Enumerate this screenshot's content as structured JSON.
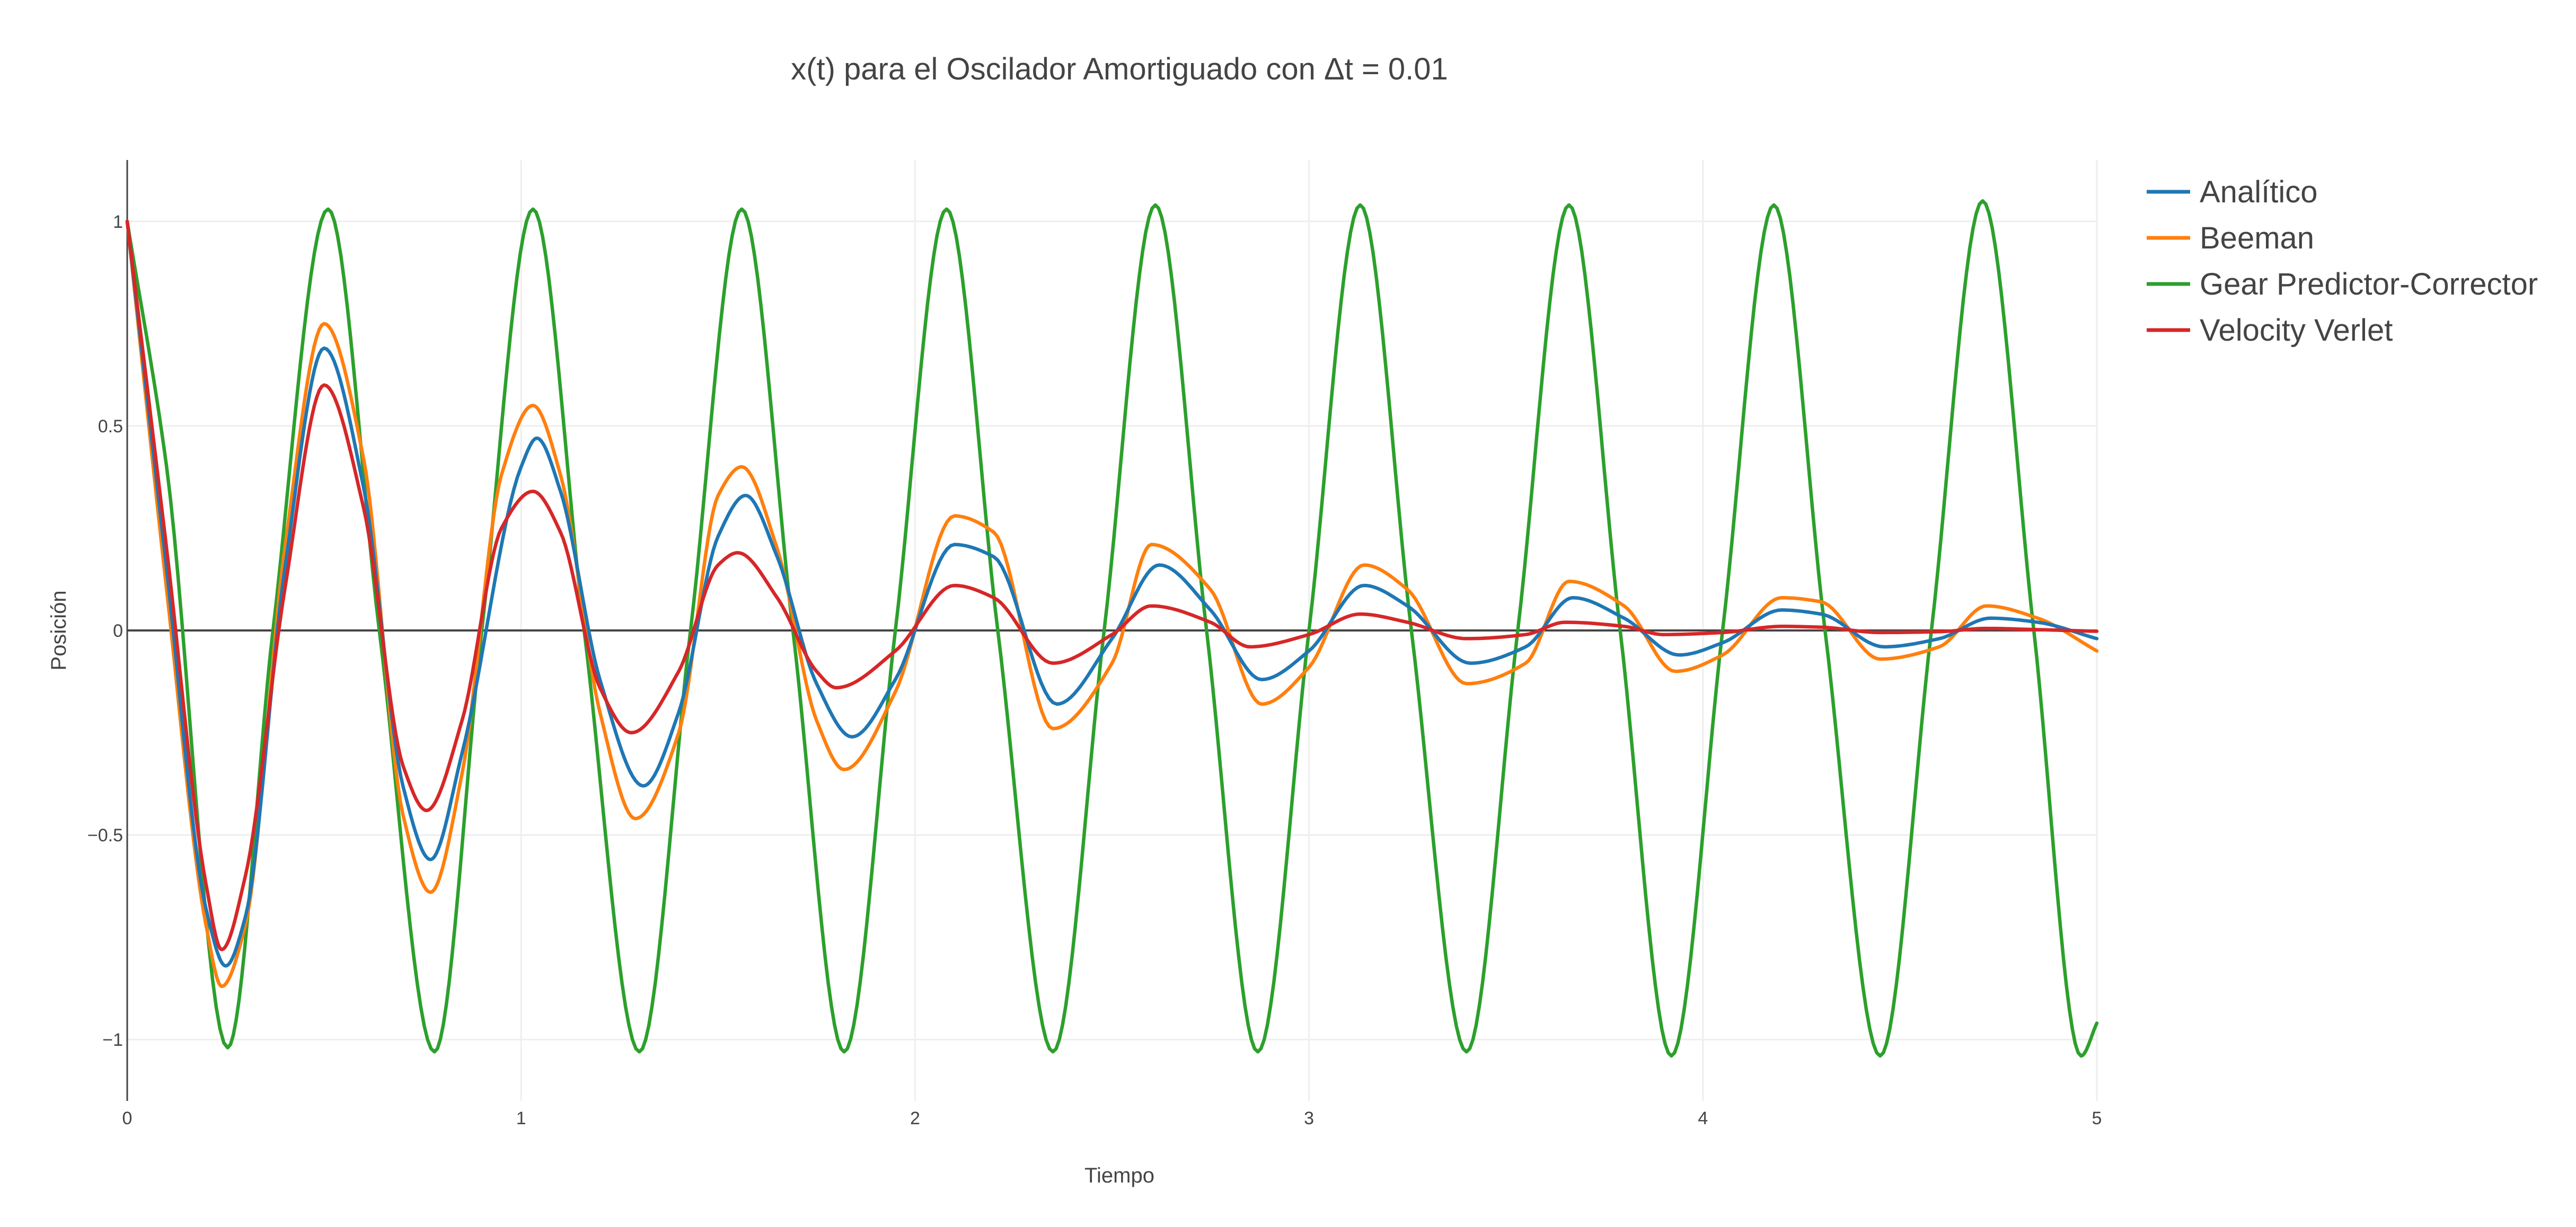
{
  "chart_data": {
    "type": "line",
    "title": "x(t) para el Oscilador Amortiguado con Δt = 0.01",
    "xlabel": "Tiempo",
    "ylabel": "Posición",
    "xlim": [
      0,
      5
    ],
    "ylim": [
      -1.15,
      1.15
    ],
    "xticks": [
      0,
      1,
      2,
      3,
      4,
      5
    ],
    "xtick_labels": [
      "0",
      "1",
      "2",
      "3",
      "4",
      "5"
    ],
    "yticks": [
      1,
      0.5,
      0,
      -0.5,
      -1
    ],
    "ytick_labels": [
      "1",
      "0.5",
      "0",
      "−0.5",
      "−1"
    ],
    "grid": true,
    "legend_position": "top-right",
    "series": [
      {
        "name": "Analítico",
        "color": "#1f77b4",
        "x": [
          0,
          0.1,
          0.2,
          0.25,
          0.3,
          0.4,
          0.5,
          0.6,
          0.7,
          0.77,
          0.85,
          1.0,
          1.04,
          1.1,
          1.2,
          1.31,
          1.4,
          1.5,
          1.57,
          1.65,
          1.75,
          1.84,
          1.95,
          2.1,
          2.2,
          2.36,
          2.5,
          2.62,
          2.75,
          2.88,
          3.0,
          3.14,
          3.25,
          3.41,
          3.55,
          3.67,
          3.8,
          3.94,
          4.05,
          4.2,
          4.3,
          4.46,
          4.6,
          4.73,
          4.85,
          5.0
        ],
        "y": [
          1.0,
          0.15,
          -0.68,
          -0.82,
          -0.7,
          0.15,
          0.69,
          0.35,
          -0.38,
          -0.56,
          -0.3,
          0.4,
          0.47,
          0.34,
          -0.12,
          -0.38,
          -0.2,
          0.23,
          0.33,
          0.18,
          -0.13,
          -0.26,
          -0.12,
          0.21,
          0.18,
          -0.18,
          -0.02,
          0.16,
          0.05,
          -0.12,
          -0.05,
          0.11,
          0.06,
          -0.08,
          -0.04,
          0.08,
          0.03,
          -0.06,
          -0.03,
          0.05,
          0.04,
          -0.04,
          -0.02,
          0.03,
          0.02,
          -0.02
        ]
      },
      {
        "name": "Beeman",
        "color": "#ff7f0e",
        "x": [
          0,
          0.1,
          0.2,
          0.24,
          0.3,
          0.4,
          0.5,
          0.6,
          0.7,
          0.77,
          0.85,
          0.95,
          1.03,
          1.1,
          1.2,
          1.29,
          1.4,
          1.5,
          1.56,
          1.65,
          1.75,
          1.82,
          1.95,
          2.1,
          2.2,
          2.35,
          2.5,
          2.6,
          2.75,
          2.88,
          3.0,
          3.14,
          3.25,
          3.4,
          3.55,
          3.66,
          3.8,
          3.93,
          4.05,
          4.2,
          4.3,
          4.45,
          4.6,
          4.72,
          4.85,
          5.0
        ],
        "y": [
          1.0,
          0.1,
          -0.72,
          -0.87,
          -0.72,
          0.2,
          0.75,
          0.42,
          -0.45,
          -0.64,
          -0.35,
          0.38,
          0.55,
          0.38,
          -0.2,
          -0.46,
          -0.25,
          0.33,
          0.4,
          0.2,
          -0.22,
          -0.34,
          -0.15,
          0.28,
          0.24,
          -0.24,
          -0.08,
          0.21,
          0.1,
          -0.18,
          -0.09,
          0.16,
          0.1,
          -0.13,
          -0.08,
          0.12,
          0.06,
          -0.1,
          -0.06,
          0.08,
          0.07,
          -0.07,
          -0.04,
          0.06,
          0.03,
          -0.05
        ]
      },
      {
        "name": "Gear Predictor-Corrector",
        "color": "#2ca02c",
        "x": [
          0,
          0.1,
          0.255,
          0.37,
          0.51,
          0.64,
          0.78,
          0.9,
          1.03,
          1.16,
          1.3,
          1.43,
          1.56,
          1.69,
          1.82,
          1.95,
          2.08,
          2.21,
          2.35,
          2.48,
          2.61,
          2.74,
          2.87,
          3.0,
          3.13,
          3.26,
          3.4,
          3.53,
          3.66,
          3.79,
          3.92,
          4.05,
          4.18,
          4.31,
          4.45,
          4.58,
          4.71,
          4.84,
          4.96,
          5.0
        ],
        "y": [
          1.0,
          0.4,
          -1.02,
          0.0,
          1.03,
          0.0,
          -1.03,
          0.0,
          1.03,
          0.0,
          -1.03,
          0.0,
          1.03,
          0.0,
          -1.03,
          0.0,
          1.03,
          0.0,
          -1.03,
          0.0,
          1.04,
          0.0,
          -1.03,
          0.0,
          1.04,
          0.0,
          -1.03,
          0.0,
          1.04,
          0.0,
          -1.04,
          0.0,
          1.04,
          0.0,
          -1.04,
          0.0,
          1.05,
          0.0,
          -1.04,
          -0.96
        ]
      },
      {
        "name": "Velocity Verlet",
        "color": "#d62728",
        "x": [
          0,
          0.1,
          0.2,
          0.24,
          0.3,
          0.4,
          0.5,
          0.6,
          0.7,
          0.76,
          0.85,
          0.95,
          1.03,
          1.1,
          1.2,
          1.28,
          1.4,
          1.5,
          1.55,
          1.65,
          1.75,
          1.8,
          1.95,
          2.1,
          2.2,
          2.35,
          2.5,
          2.6,
          2.75,
          2.85,
          3.0,
          3.13,
          3.25,
          3.4,
          3.55,
          3.65,
          3.8,
          3.9,
          4.05,
          4.2,
          4.3,
          4.45,
          4.6,
          4.72,
          4.85,
          5.0
        ],
        "y": [
          1.0,
          0.2,
          -0.62,
          -0.78,
          -0.6,
          0.1,
          0.6,
          0.3,
          -0.33,
          -0.44,
          -0.22,
          0.25,
          0.34,
          0.24,
          -0.14,
          -0.25,
          -0.1,
          0.16,
          0.19,
          0.08,
          -0.1,
          -0.14,
          -0.05,
          0.11,
          0.08,
          -0.08,
          -0.01,
          0.06,
          0.02,
          -0.04,
          -0.01,
          0.04,
          0.02,
          -0.02,
          -0.01,
          0.02,
          0.01,
          -0.01,
          -0.005,
          0.01,
          0.008,
          -0.005,
          -0.003,
          0.005,
          0.002,
          -0.002
        ]
      }
    ]
  }
}
